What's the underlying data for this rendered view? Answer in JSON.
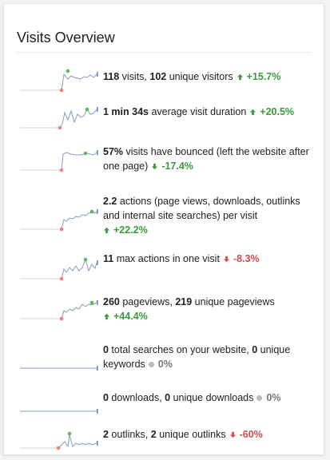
{
  "widget": {
    "title": "Visits Overview"
  },
  "colors": {
    "up": "#3a9a3a",
    "down": "#d24b4b",
    "neutral": "#b9b9b9",
    "line": "#8a9bb8",
    "line_start": "#d6d6d6",
    "dot_first": "#f08080",
    "dot_max": "#5cb85c",
    "dot_last": "#4a90d9"
  },
  "metrics": [
    {
      "parts": [
        {
          "text": "118",
          "bold": true
        },
        {
          "text": " visits, ",
          "bold": false
        },
        {
          "text": "102",
          "bold": true
        },
        {
          "text": " unique visitors",
          "bold": false
        }
      ],
      "trend": {
        "direction": "up",
        "icon": "arrow-up-icon",
        "value": "+15.7%"
      }
    },
    {
      "parts": [
        {
          "text": "1 min 34s",
          "bold": true
        },
        {
          "text": " average visit duration",
          "bold": false
        }
      ],
      "trend": {
        "direction": "up",
        "icon": "arrow-up-icon",
        "value": "+20.5%"
      }
    },
    {
      "parts": [
        {
          "text": "57%",
          "bold": true
        },
        {
          "text": " visits have bounced (left the website after one page)",
          "bold": false
        }
      ],
      "trend": {
        "direction": "up",
        "icon": "arrow-down-green-icon",
        "value": "-17.4%"
      }
    },
    {
      "parts": [
        {
          "text": "2.2",
          "bold": true
        },
        {
          "text": " actions (page views, downloads, outlinks and internal site searches) per visit",
          "bold": false
        }
      ],
      "trend": {
        "direction": "up",
        "icon": "arrow-up-icon",
        "value": "+22.2%",
        "newline": true
      }
    },
    {
      "parts": [
        {
          "text": "11",
          "bold": true
        },
        {
          "text": " max actions in one visit",
          "bold": false
        }
      ],
      "trend": {
        "direction": "down",
        "icon": "arrow-down-icon",
        "value": "-8.3%"
      }
    },
    {
      "parts": [
        {
          "text": "260",
          "bold": true
        },
        {
          "text": " pageviews, ",
          "bold": false
        },
        {
          "text": "219",
          "bold": true
        },
        {
          "text": " unique pageviews",
          "bold": false
        }
      ],
      "trend": {
        "direction": "up",
        "icon": "arrow-up-icon",
        "value": "+44.4%",
        "newline": true
      }
    },
    {
      "parts": [
        {
          "text": "0",
          "bold": true
        },
        {
          "text": " total searches on your website, ",
          "bold": false
        },
        {
          "text": "0",
          "bold": true
        },
        {
          "text": " unique keywords",
          "bold": false
        }
      ],
      "trend": {
        "direction": "neutral",
        "icon": "neutral-dot-icon",
        "value": "0%"
      }
    },
    {
      "parts": [
        {
          "text": "0",
          "bold": true
        },
        {
          "text": " downloads, ",
          "bold": false
        },
        {
          "text": "0",
          "bold": true
        },
        {
          "text": " unique downloads",
          "bold": false
        }
      ],
      "trend": {
        "direction": "neutral",
        "icon": "neutral-dot-icon",
        "value": "0%"
      }
    },
    {
      "parts": [
        {
          "text": "2",
          "bold": true
        },
        {
          "text": " outlinks, ",
          "bold": false
        },
        {
          "text": "2",
          "bold": true
        },
        {
          "text": " unique outlinks",
          "bold": false
        }
      ],
      "trend": {
        "direction": "down",
        "icon": "arrow-down-icon",
        "value": "-60%"
      }
    }
  ]
}
